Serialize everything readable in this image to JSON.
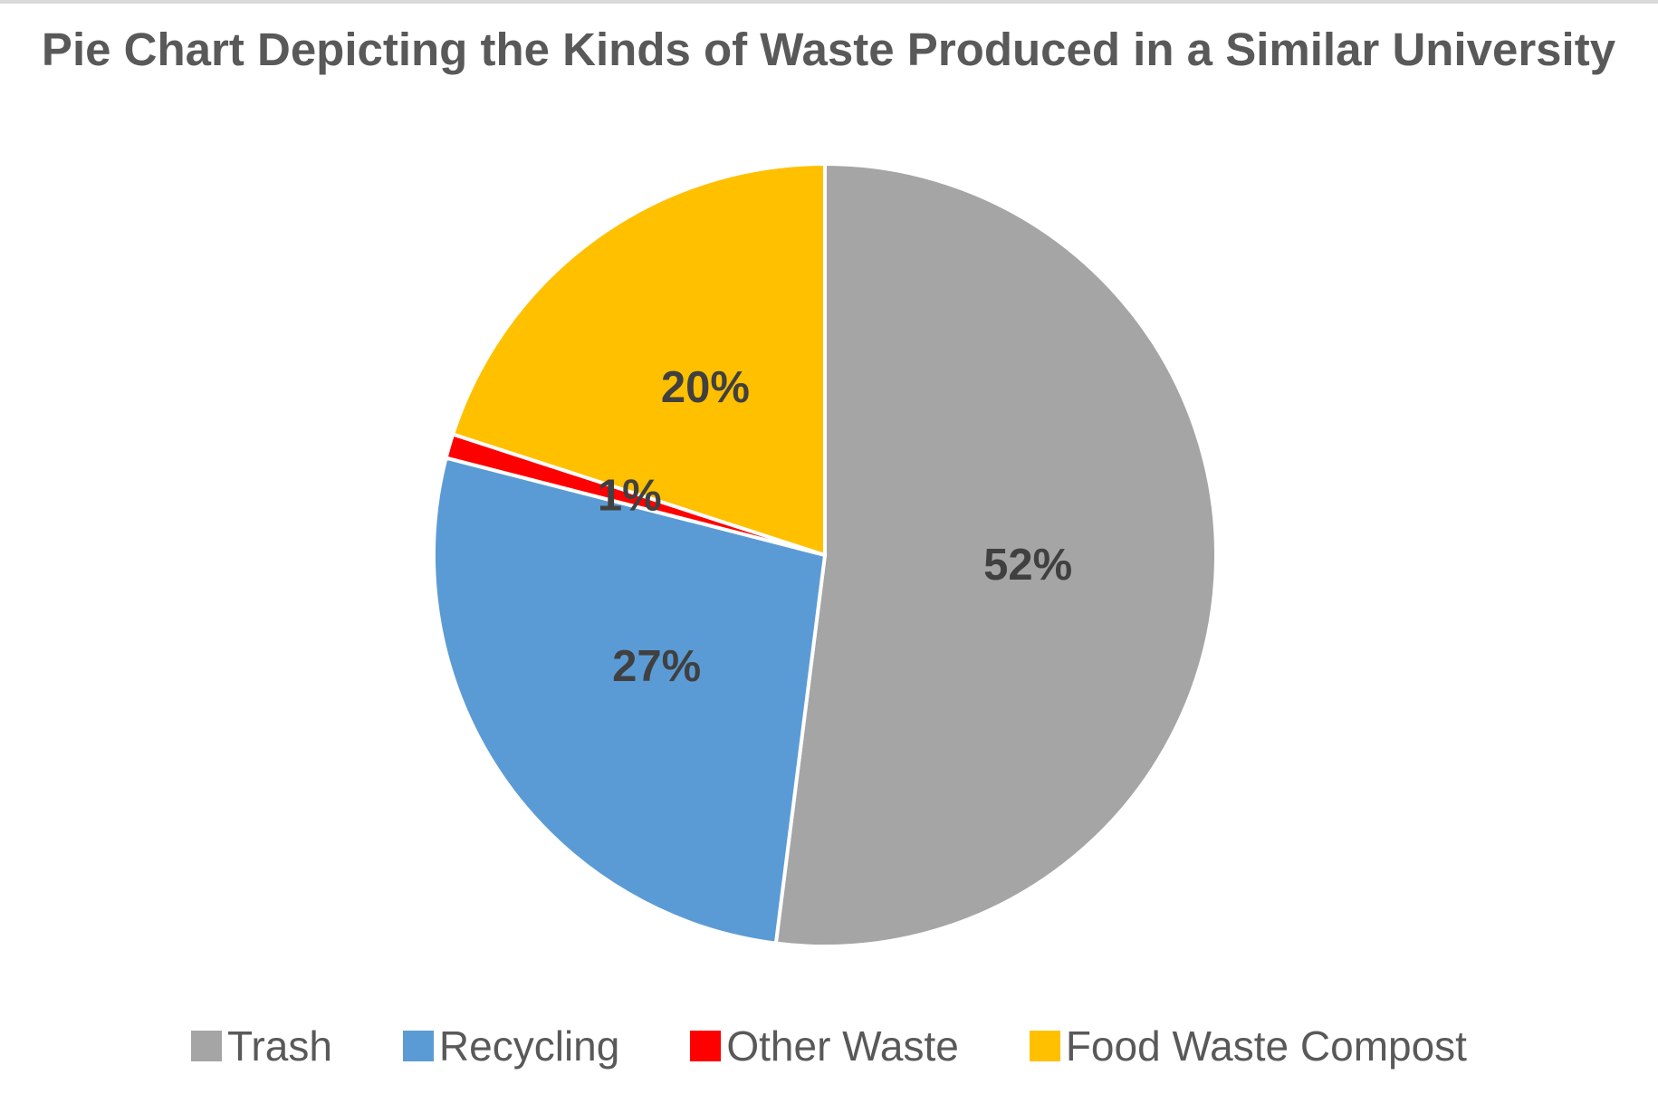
{
  "chart_data": {
    "type": "pie",
    "title": "Pie Chart Depicting the Kinds of Waste Produced in a Similar University",
    "categories": [
      "Trash",
      "Recycling",
      "Other Waste",
      "Food Waste Compost"
    ],
    "values": [
      52,
      27,
      1,
      20
    ],
    "value_labels": [
      "52%",
      "27%",
      "1%",
      "20%"
    ],
    "colors": [
      "#a5a5a5",
      "#5b9bd5",
      "#ff0000",
      "#ffc000"
    ],
    "legend": "bottom"
  }
}
